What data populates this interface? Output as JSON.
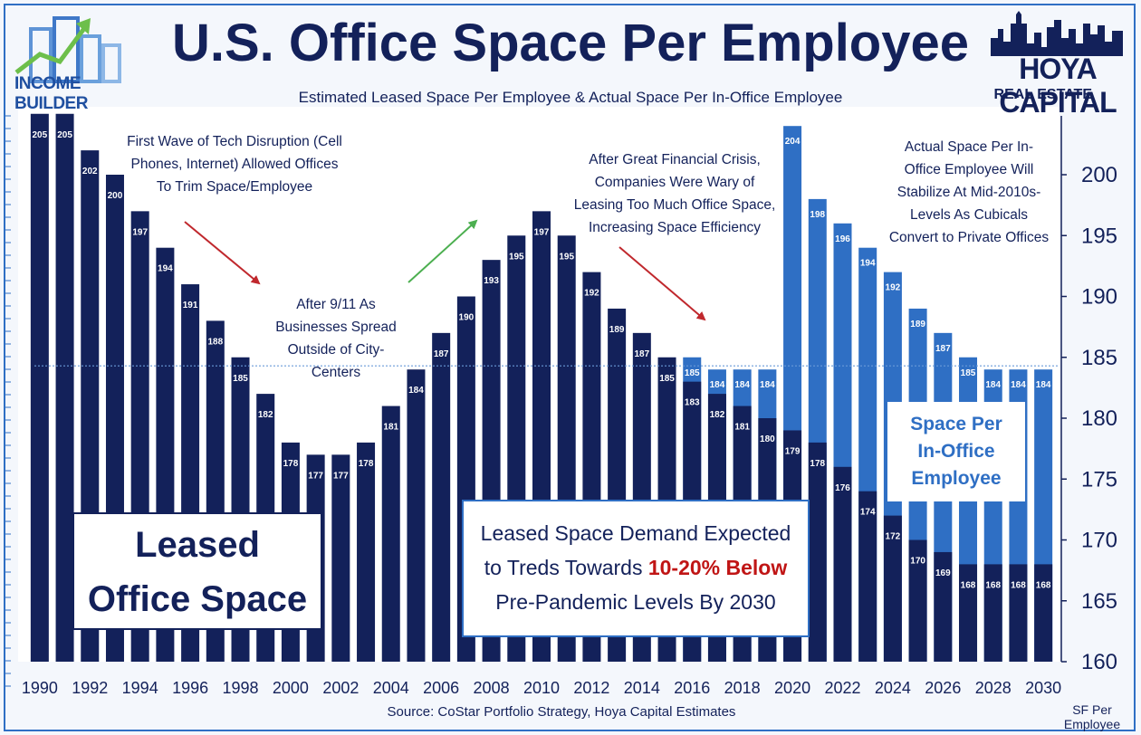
{
  "header": {
    "title": "U.S. Office Space Per Employee",
    "subtitle": "Estimated Leased Space Per Employee & Actual Space Per In-Office Employee"
  },
  "logos": {
    "left": "INCOME BUILDER",
    "right_name": "HOYA CAPITAL",
    "right_sub": "REAL ESTATE"
  },
  "annotations": {
    "tech": [
      "First Wave of Tech Disruption (Cell",
      "Phones, Internet) Allowed Offices",
      "To Trim Space/Employee"
    ],
    "nine_eleven": [
      "After 9/11 As",
      "Businesses Spread",
      "Outside of City-",
      "Centers"
    ],
    "gfc": [
      "After Great Financial Crisis,",
      "Companies Were Wary of",
      "Leasing Too Much Office Space,",
      "Increasing Space Efficiency"
    ],
    "stabilize": [
      "Actual Space Per In-",
      "Office Employee Will",
      "Stabilize At Mid-2010s-",
      "Levels As Cubicals",
      "Convert to Private Offices"
    ]
  },
  "boxes": {
    "leased": [
      "Leased",
      "Office Space"
    ],
    "demand_line1": "Leased Space Demand Expected",
    "demand_line2_pre": "to Treds Towards ",
    "demand_line2_hl": "10-20% Below",
    "demand_line3": "Pre-Pandemic Levels By 2030",
    "inoffice": [
      "Space Per",
      "In-Office",
      "Employee"
    ]
  },
  "footer": {
    "source": "Source: CoStar Portfolio Strategy, Hoya Capital Estimates",
    "unit": "SF Per Employee"
  },
  "colors": {
    "leased": "#13215a",
    "inoffice": "#2f6fc4",
    "arrow_down": "#c0282d",
    "arrow_up": "#4caf50",
    "reference_line": "#6a9ad8",
    "text": "#13215a"
  },
  "chart_data": {
    "type": "bar",
    "title": "U.S. Office Space Per Employee",
    "ylim": [
      160,
      205
    ],
    "yticks": [
      160,
      165,
      170,
      175,
      180,
      185,
      190,
      195,
      200
    ],
    "xtick_labels": [
      "1990",
      "1992",
      "1994",
      "1996",
      "1998",
      "2000",
      "2002",
      "2004",
      "2006",
      "2008",
      "2010",
      "2012",
      "2014",
      "2016",
      "2018",
      "2020",
      "2022",
      "2024",
      "2026",
      "2028",
      "2030"
    ],
    "years": [
      1990,
      1991,
      1992,
      1993,
      1994,
      1995,
      1996,
      1997,
      1998,
      1999,
      2000,
      2001,
      2002,
      2003,
      2004,
      2005,
      2006,
      2007,
      2008,
      2009,
      2010,
      2011,
      2012,
      2013,
      2014,
      2015,
      2016,
      2017,
      2018,
      2019,
      2020,
      2021,
      2022,
      2023,
      2024,
      2025,
      2026,
      2027,
      2028,
      2029,
      2030
    ],
    "series": [
      {
        "name": "Leased Office Space",
        "values": [
          205,
          205,
          202,
          200,
          197,
          194,
          191,
          188,
          185,
          182,
          178,
          177,
          177,
          178,
          181,
          184,
          187,
          190,
          193,
          195,
          197,
          195,
          192,
          189,
          187,
          185,
          183,
          182,
          181,
          180,
          179,
          178,
          176,
          174,
          172,
          170,
          169,
          168,
          168,
          168,
          168
        ]
      },
      {
        "name": "Space Per In-Office Employee",
        "values": [
          null,
          null,
          null,
          null,
          null,
          null,
          null,
          null,
          null,
          null,
          null,
          null,
          null,
          null,
          null,
          null,
          null,
          null,
          null,
          null,
          null,
          null,
          null,
          null,
          null,
          null,
          185,
          184,
          184,
          184,
          204,
          198,
          196,
          194,
          192,
          189,
          187,
          185,
          184,
          184,
          184
        ]
      }
    ],
    "reference_line": 184.3,
    "grid": false,
    "legend": "none"
  }
}
